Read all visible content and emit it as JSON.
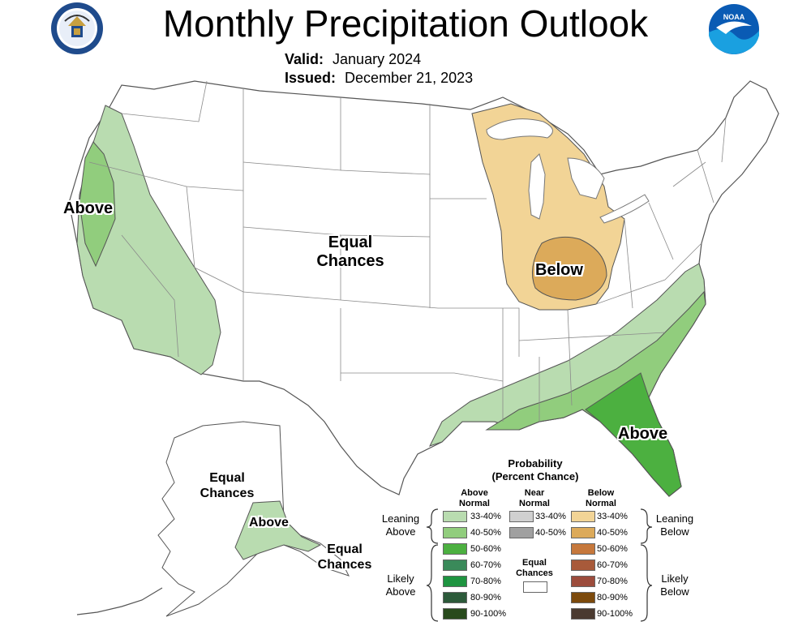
{
  "title": "Monthly Precipitation Outlook",
  "valid_label": "Valid:",
  "valid_value": "January 2024",
  "issued_label": "Issued:",
  "issued_value": "December 21, 2023",
  "logos": {
    "left": "department-of-commerce-seal",
    "right": "noaa-logo",
    "right_text": "NOAA"
  },
  "map_labels": {
    "west_above": "Above",
    "center_equal_line1": "Equal",
    "center_equal_line2": "Chances",
    "midwest_below": "Below",
    "southeast_above": "Above",
    "alaska_equal_line1": "Equal",
    "alaska_equal_line2": "Chances",
    "alaska_above": "Above",
    "se_alaska_equal_line1": "Equal",
    "se_alaska_equal_line2": "Chances"
  },
  "legend": {
    "title_line1": "Probability",
    "title_line2": "(Percent Chance)",
    "col_above_line1": "Above",
    "col_above_line2": "Normal",
    "col_near_line1": "Near",
    "col_near_line2": "Normal",
    "col_below_line1": "Below",
    "col_below_line2": "Normal",
    "leaning_above_line1": "Leaning",
    "leaning_above_line2": "Above",
    "leaning_below_line1": "Leaning",
    "leaning_below_line2": "Below",
    "likely_above_line1": "Likely",
    "likely_above_line2": "Above",
    "likely_below_line1": "Likely",
    "likely_below_line2": "Below",
    "equal_line1": "Equal",
    "equal_line2": "Chances",
    "above": [
      {
        "label": "33-40%",
        "color": "#b9dcb0"
      },
      {
        "label": "40-50%",
        "color": "#91cd7d"
      },
      {
        "label": "50-60%",
        "color": "#4cb040"
      },
      {
        "label": "60-70%",
        "color": "#3a8a5a"
      },
      {
        "label": "70-80%",
        "color": "#1e9440"
      },
      {
        "label": "80-90%",
        "color": "#2c5a3a"
      },
      {
        "label": "90-100%",
        "color": "#284a1c"
      }
    ],
    "near": [
      {
        "label": "33-40%",
        "color": "#d0d0d0"
      },
      {
        "label": "40-50%",
        "color": "#a0a0a0"
      }
    ],
    "below": [
      {
        "label": "33-40%",
        "color": "#f2d496"
      },
      {
        "label": "40-50%",
        "color": "#dcaa5a"
      },
      {
        "label": "50-60%",
        "color": "#c6783c"
      },
      {
        "label": "60-70%",
        "color": "#a85a3a"
      },
      {
        "label": "70-80%",
        "color": "#9c4c3c"
      },
      {
        "label": "80-90%",
        "color": "#7c4a0c"
      },
      {
        "label": "90-100%",
        "color": "#4a3a30"
      }
    ]
  },
  "colors": {
    "outline": "#555555",
    "state_lines": "#8a8a8a"
  }
}
